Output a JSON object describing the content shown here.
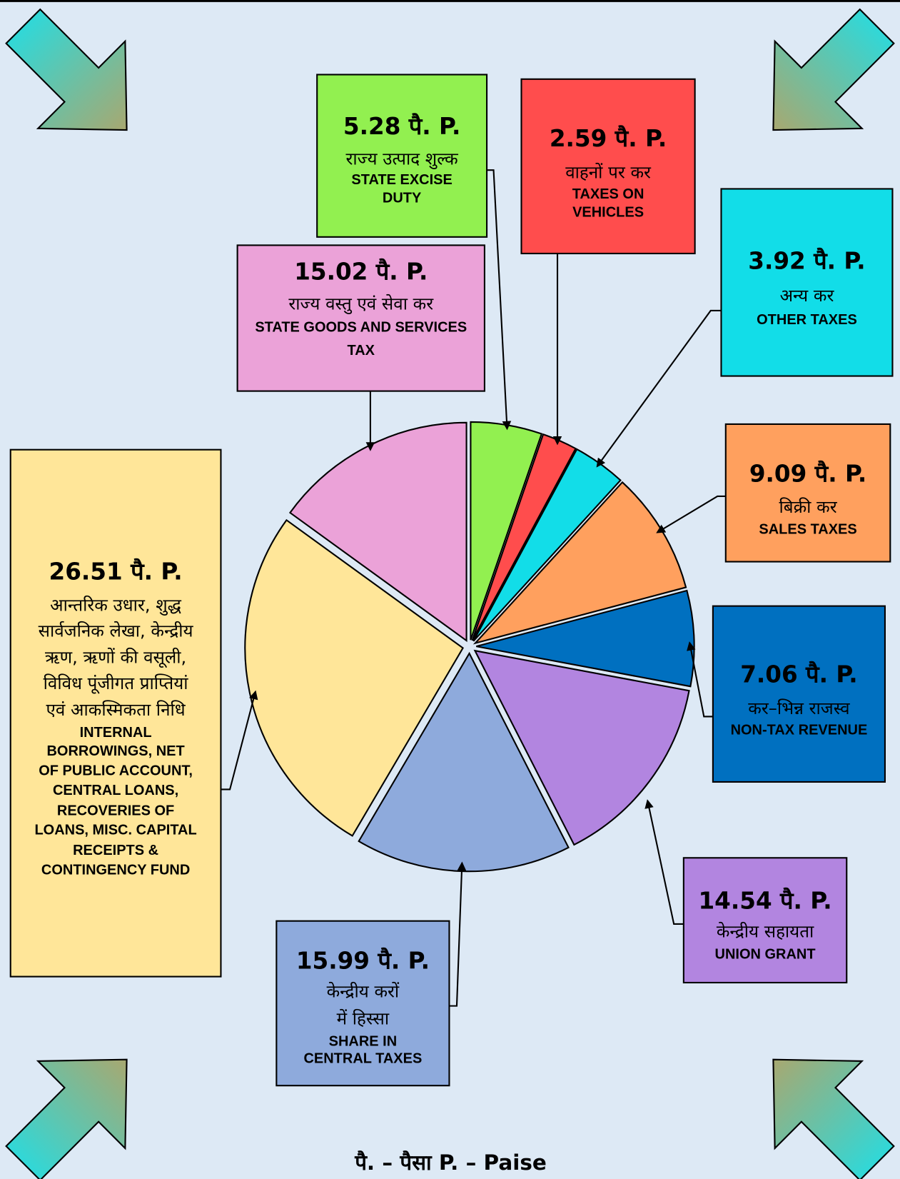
{
  "chart_data": {
    "type": "pie",
    "values": [
      5.28,
      2.59,
      3.92,
      9.09,
      7.06,
      14.54,
      15.99,
      26.51,
      15.02
    ],
    "value_labels": [
      "5.28 पै.  P.",
      "2.59 पै.  P.",
      "3.92 पै.  P.",
      "9.09 पै.  P.",
      "7.06 पै.  P.",
      "14.54 पै. P.",
      "15.99 पै. P.",
      "26.51 पै.  P.",
      "15.02 पै. P."
    ],
    "hindi_labels": [
      [
        "राज्य उत्पाद शुल्क"
      ],
      [
        "वाहनों पर कर"
      ],
      [
        "अन्य कर"
      ],
      [
        "बिक्री कर"
      ],
      [
        "कर–भिन्न राजस्व"
      ],
      [
        "केन्द्रीय सहायता"
      ],
      [
        "केन्द्रीय करों",
        "में हिस्सा"
      ],
      [
        "आन्तरिक उधार, शुद्ध",
        "सार्वजनिक लेखा, केन्द्रीय",
        "ऋण, ऋणों की वसूली,",
        "विविध पूंजीगत प्राप्तियां",
        "एवं आकस्मिकता निधि"
      ],
      [
        "राज्य वस्तु एवं सेवा कर"
      ]
    ],
    "english_labels": [
      [
        "STATE  EXCISE",
        "DUTY"
      ],
      [
        "TAXES  ON",
        "VEHICLES"
      ],
      [
        "OTHER  TAXES"
      ],
      [
        "SALES  TAXES"
      ],
      [
        "NON-TAX REVENUE"
      ],
      [
        "UNION GRANT"
      ],
      [
        "SHARE  IN",
        "CENTRAL  TAXES"
      ],
      [
        "INTERNAL",
        "BORROWINGS,  NET",
        "OF  PUBLIC  ACCOUNT,",
        "CENTRAL  LOANS,",
        "RECOVERIES  OF",
        "LOANS, MISC. CAPITAL",
        "RECEIPTS &",
        "CONTINGENCY FUND"
      ],
      [
        "STATE GOODS AND SERVICES",
        "TAX"
      ]
    ],
    "colors": [
      "#92f050",
      "#ff4d4d",
      "#12dde8",
      "#ffa05e",
      "#0070c0",
      "#b285e0",
      "#8eaadc",
      "#ffe699",
      "#eba2d8"
    ],
    "footnote": "पै. – पैसा  P. – Paise"
  }
}
